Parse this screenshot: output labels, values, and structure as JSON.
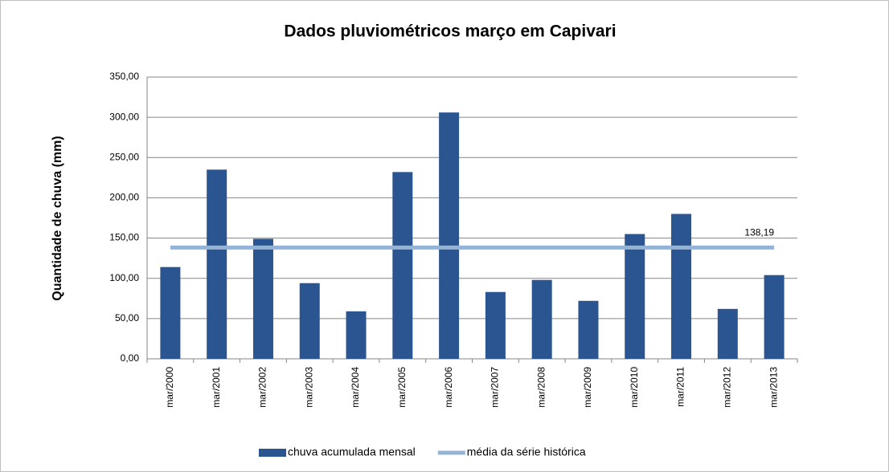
{
  "chart_data": {
    "type": "bar",
    "title": "Dados pluviométricos março em Capivari",
    "y_label": "Quantidade de chuva (mm)",
    "categories": [
      "mar/2000",
      "mar/2001",
      "mar/2002",
      "mar/2003",
      "mar/2004",
      "mar/2005",
      "mar/2006",
      "mar/2007",
      "mar/2008",
      "mar/2009",
      "mar/2010",
      "mar/2011",
      "mar/2012",
      "mar/2013"
    ],
    "series": [
      {
        "name": "chuva acumulada mensal",
        "color": "#2a5590",
        "type": "bar",
        "values": [
          114,
          235,
          149,
          94,
          59,
          232,
          306,
          83,
          98,
          72,
          155,
          180,
          62,
          104
        ]
      },
      {
        "name": "média da série histórica",
        "color": "#95b3d7",
        "type": "line",
        "values": [
          138.19,
          138.19,
          138.19,
          138.19,
          138.19,
          138.19,
          138.19,
          138.19,
          138.19,
          138.19,
          138.19,
          138.19,
          138.19,
          138.19
        ],
        "value_labels": [
          null,
          null,
          null,
          null,
          null,
          null,
          null,
          null,
          null,
          null,
          null,
          null,
          null,
          "138,19"
        ]
      }
    ],
    "ylim": [
      0,
      350
    ],
    "yticks": [
      {
        "value": 0,
        "label": "0,00"
      },
      {
        "value": 50,
        "label": "50,00"
      },
      {
        "value": 100,
        "label": "100,00"
      },
      {
        "value": 150,
        "label": "150,00"
      },
      {
        "value": 200,
        "label": "200,00"
      },
      {
        "value": 250,
        "label": "250,00"
      },
      {
        "value": 300,
        "label": "300,00"
      },
      {
        "value": 350,
        "label": "350,00"
      }
    ],
    "grid": true,
    "legend": "bottom"
  }
}
